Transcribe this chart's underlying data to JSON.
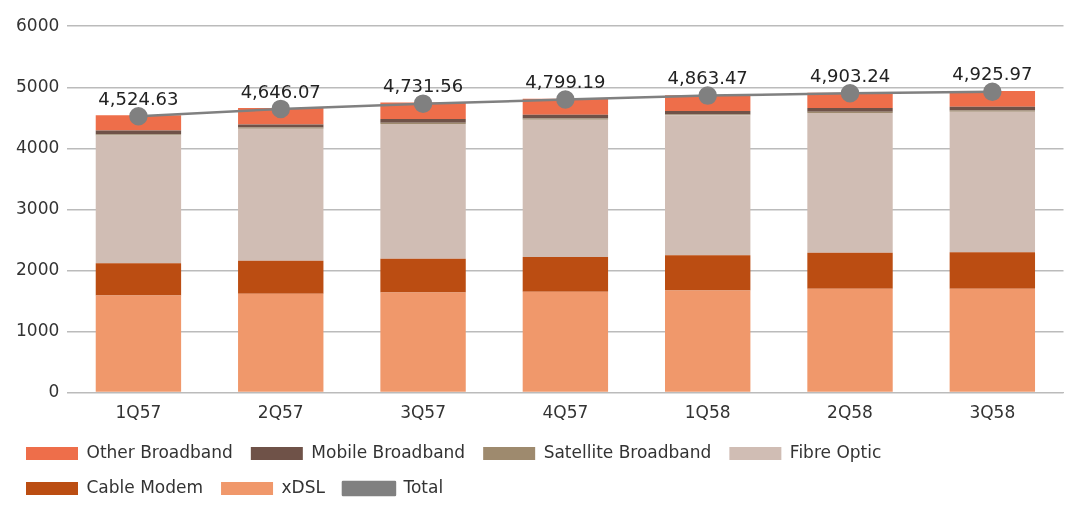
{
  "chart_data": {
    "type": "bar",
    "stacked": true,
    "categories": [
      "1Q57",
      "2Q57",
      "3Q57",
      "4Q57",
      "1Q58",
      "2Q58",
      "3Q58"
    ],
    "series": [
      {
        "name": "xDSL",
        "color": "#f0986b",
        "values": [
          1590,
          1620,
          1640,
          1650,
          1670,
          1700,
          1700
        ]
      },
      {
        "name": "Cable Modem",
        "color": "#bb4d12",
        "values": [
          530,
          540,
          550,
          570,
          580,
          590,
          600
        ]
      },
      {
        "name": "Fibre Optic",
        "color": "#d0bdb4",
        "values": [
          2090,
          2160,
          2210,
          2250,
          2290,
          2290,
          2300
        ]
      },
      {
        "name": "Satellite Broadband",
        "color": "#9e8a6e",
        "values": [
          20,
          20,
          20,
          20,
          20,
          20,
          20
        ]
      },
      {
        "name": "Mobile Broadband",
        "color": "#6f5248",
        "values": [
          60,
          50,
          60,
          60,
          50,
          60,
          60
        ]
      },
      {
        "name": "Other Broadband",
        "color": "#ee6e4a",
        "values": [
          250,
          270,
          270,
          260,
          260,
          250,
          260
        ]
      },
      {
        "name": "Total",
        "type": "line",
        "color": "#808080",
        "marker": "circle",
        "values": [
          4524.63,
          4646.07,
          4731.56,
          4799.19,
          4863.47,
          4903.24,
          4925.97
        ],
        "value_labels": [
          "4,524.63",
          "4,646.07",
          "4,731.56",
          "4,799.19",
          "4,863.47",
          "4,903.24",
          "4,925.97"
        ]
      }
    ],
    "ylim": [
      0,
      6000
    ],
    "yticks": [
      0,
      1000,
      2000,
      3000,
      4000,
      5000,
      6000
    ],
    "grid": "y",
    "legend": "bottom"
  }
}
